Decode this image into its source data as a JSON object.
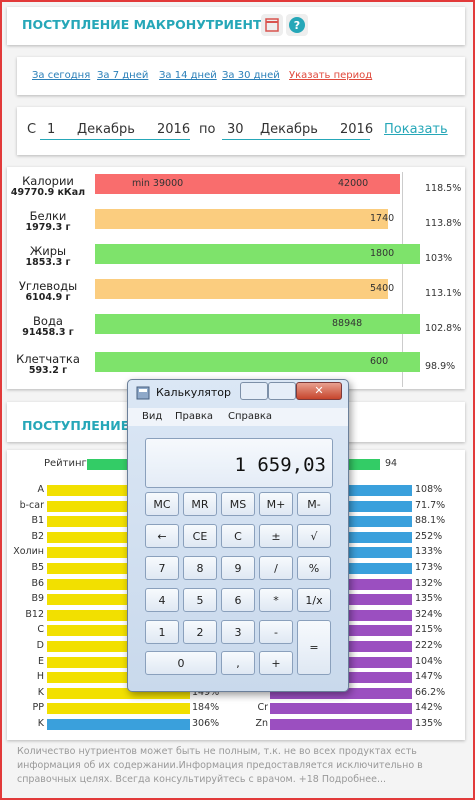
{
  "macro_panel": {
    "title": "ПОСТУПЛЕНИЕ МАКРОНУТРИЕНТОВ",
    "period_links": [
      "За сегодня",
      "За 7 дней",
      "За 14 дней",
      "За 30 дней",
      "Указать период"
    ],
    "date_range": {
      "from_label": "С",
      "from_day": "1",
      "from_month": "Декабрь",
      "from_year": "2016",
      "to_label": "по",
      "to_day": "30",
      "to_month": "Декабрь",
      "to_year": "2016",
      "button": "Показать"
    },
    "rows": [
      {
        "name": "Калории",
        "amount": "49770.9 кКал",
        "min_label": "min 39000",
        "target": "42000",
        "percent": "118.5%",
        "color": "#f96d6d"
      },
      {
        "name": "Белки",
        "amount": "1979.3 г",
        "target": "1740",
        "percent": "113.8%",
        "color": "#fbcd7f"
      },
      {
        "name": "Жиры",
        "amount": "1853.3 г",
        "target": "1800",
        "percent": "103%",
        "color": "#7ee36b"
      },
      {
        "name": "Углеводы",
        "amount": "6104.9 г",
        "target": "5400",
        "percent": "113.1%",
        "color": "#fbcd7f"
      },
      {
        "name": "Вода",
        "amount": "91458.3 г",
        "target": "88948",
        "percent": "102.8%",
        "color": "#7ee36b"
      },
      {
        "name": "Клетчатка",
        "amount": "593.2 г",
        "target": "600",
        "percent": "98.9%",
        "color": "#7ee36b"
      }
    ]
  },
  "micro_panel": {
    "title": "ПОСТУПЛЕНИЕ М",
    "rating": {
      "label": "Рейтинг",
      "value": "94",
      "color": "#33cc66"
    },
    "left": [
      {
        "name": "A",
        "percent": null,
        "color": "#f2e000"
      },
      {
        "name": "b-car",
        "percent": null,
        "color": "#f2e000"
      },
      {
        "name": "B1",
        "percent": null,
        "color": "#f2e000"
      },
      {
        "name": "B2",
        "percent": null,
        "color": "#f2e000"
      },
      {
        "name": "Холин",
        "percent": null,
        "color": "#f2e000"
      },
      {
        "name": "B5",
        "percent": null,
        "color": "#f2e000"
      },
      {
        "name": "B6",
        "percent": null,
        "color": "#f2e000"
      },
      {
        "name": "B9",
        "percent": null,
        "color": "#f2e000"
      },
      {
        "name": "B12",
        "percent": null,
        "color": "#f2e000"
      },
      {
        "name": "C",
        "percent": null,
        "color": "#f2e000"
      },
      {
        "name": "D",
        "percent": null,
        "color": "#f2e000"
      },
      {
        "name": "E",
        "percent": null,
        "color": "#f2e000"
      },
      {
        "name": "H",
        "percent": null,
        "color": "#f2e000"
      },
      {
        "name": "K",
        "percent": "149%",
        "color": "#f2e000"
      },
      {
        "name": "PP",
        "percent": "184%",
        "color": "#f2e000"
      },
      {
        "name": "K",
        "percent": "306%",
        "color": "#3aa0dc"
      }
    ],
    "right": [
      {
        "name": null,
        "percent": "108%",
        "color": "#3aa0dc"
      },
      {
        "name": null,
        "percent": "71.7%",
        "color": "#3aa0dc"
      },
      {
        "name": null,
        "percent": "88.1%",
        "color": "#3aa0dc"
      },
      {
        "name": null,
        "percent": "252%",
        "color": "#3aa0dc"
      },
      {
        "name": null,
        "percent": "133%",
        "color": "#3aa0dc"
      },
      {
        "name": null,
        "percent": "173%",
        "color": "#3aa0dc"
      },
      {
        "name": null,
        "percent": "132%",
        "color": "#9b4fc0"
      },
      {
        "name": null,
        "percent": "135%",
        "color": "#9b4fc0"
      },
      {
        "name": null,
        "percent": "324%",
        "color": "#9b4fc0"
      },
      {
        "name": null,
        "percent": "215%",
        "color": "#9b4fc0"
      },
      {
        "name": null,
        "percent": "222%",
        "color": "#9b4fc0"
      },
      {
        "name": null,
        "percent": "104%",
        "color": "#9b4fc0"
      },
      {
        "name": null,
        "percent": "147%",
        "color": "#9b4fc0"
      },
      {
        "name": null,
        "percent": "66.2%",
        "color": "#9b4fc0"
      },
      {
        "name": "Cr",
        "percent": "142%",
        "color": "#9b4fc0"
      },
      {
        "name": "Zn",
        "percent": "135%",
        "color": "#9b4fc0"
      }
    ],
    "footer": "Количество нутриентов может быть не полным, т.к. не во всех продуктах есть информация об их содержании.Информация предоставляется исключительно в справочных целях. Всегда консультируйтесь с врачом. +18 Подробнее..."
  },
  "calculator": {
    "title": "Калькулятор",
    "menu": [
      "Вид",
      "Правка",
      "Справка"
    ],
    "display": "1 659,03",
    "buttons": [
      [
        "MC",
        "MR",
        "MS",
        "M+",
        "M-"
      ],
      [
        "←",
        "CE",
        "C",
        "±",
        "√"
      ],
      [
        "7",
        "8",
        "9",
        "/",
        "%"
      ],
      [
        "4",
        "5",
        "6",
        "*",
        "1/x"
      ],
      [
        "1",
        "2",
        "3",
        "-",
        "="
      ],
      [
        "0",
        ",",
        "+"
      ]
    ]
  }
}
